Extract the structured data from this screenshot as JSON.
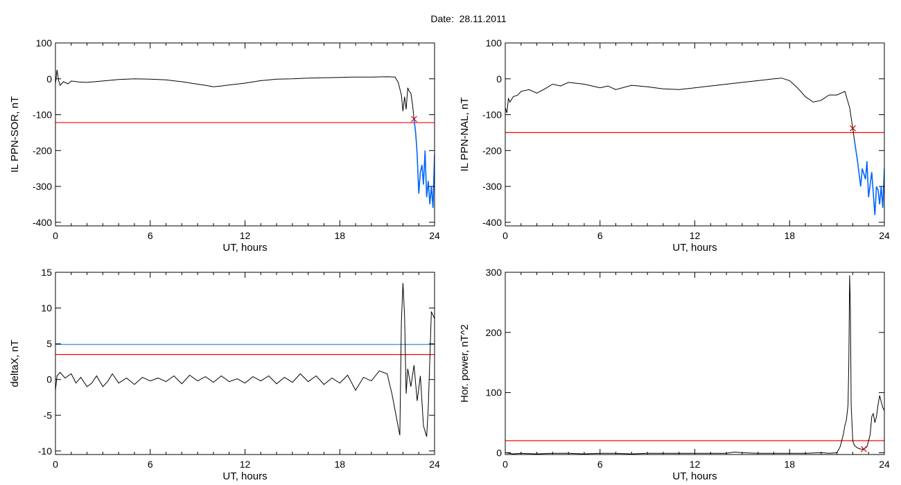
{
  "header": {
    "date_label": "Date:  28.11.2011"
  },
  "colors": {
    "trace": "#000000",
    "threshold_red": "#ff0000",
    "threshold_blue": "#1f7ad6",
    "highlight_blue": "#0066ff",
    "marker": "#cc0000"
  },
  "chart_data": [
    {
      "id": "il-sor",
      "type": "line",
      "ylabel": "IL PPN-SOR, nT",
      "xlabel": "UT, hours",
      "xlim": [
        0,
        24
      ],
      "ylim": [
        -410,
        100
      ],
      "xticks": [
        0,
        6,
        12,
        18,
        24
      ],
      "yticks": [
        -400,
        -300,
        -200,
        -100,
        0,
        100
      ],
      "threshold_red": -122,
      "threshold_blue": null,
      "highlight_from": 22.7,
      "marker": {
        "x": 22.7,
        "y": -112
      },
      "series": [
        {
          "x": [
            0,
            0.1,
            0.2,
            0.3,
            0.5,
            0.8,
            1.0,
            1.5,
            2.0,
            3.0,
            4.0,
            5.0,
            6.0,
            7.0,
            8.0,
            9.0,
            9.5,
            10.0,
            10.5,
            11.0,
            12.0,
            13.0,
            14.0,
            15.0,
            16.0,
            17.0,
            18.0,
            19.0,
            20.0,
            21.0,
            21.5,
            21.7,
            21.9,
            22.0,
            22.1,
            22.2,
            22.3,
            22.4,
            22.5,
            22.6,
            22.7,
            22.8,
            22.9,
            23.0,
            23.1,
            23.2,
            23.3,
            23.4,
            23.5,
            23.6,
            23.7,
            23.8,
            23.9,
            24.0
          ],
          "y": [
            -15,
            25,
            -5,
            -18,
            -8,
            -14,
            -6,
            -9,
            -10,
            -6,
            -2,
            0,
            -1,
            -3,
            -8,
            -15,
            -18,
            -22,
            -20,
            -17,
            -12,
            -5,
            -1,
            0,
            2,
            3,
            4,
            5,
            5,
            6,
            5,
            -10,
            -45,
            -90,
            -50,
            -85,
            -25,
            -35,
            -40,
            -70,
            -112,
            -150,
            -210,
            -320,
            -260,
            -240,
            -295,
            -200,
            -330,
            -285,
            -350,
            -300,
            -360,
            -210
          ]
        }
      ]
    },
    {
      "id": "il-nal",
      "type": "line",
      "ylabel": "IL PPN-NAL, nT",
      "xlabel": "UT, hours",
      "xlim": [
        0,
        24
      ],
      "ylim": [
        -410,
        100
      ],
      "xticks": [
        0,
        6,
        12,
        18,
        24
      ],
      "yticks": [
        -400,
        -300,
        -200,
        -100,
        0,
        100
      ],
      "threshold_red": -150,
      "threshold_blue": null,
      "highlight_from": 22.1,
      "marker": {
        "x": 22.0,
        "y": -138
      },
      "series": [
        {
          "x": [
            0,
            0.1,
            0.2,
            0.3,
            0.5,
            0.8,
            1.0,
            1.5,
            2.0,
            2.5,
            3.0,
            3.5,
            4.0,
            5.0,
            6.0,
            6.5,
            7.0,
            8.0,
            9.0,
            10.0,
            11.0,
            12.0,
            13.0,
            14.0,
            15.0,
            16.0,
            17.0,
            17.5,
            18.0,
            18.5,
            19.0,
            19.5,
            20.0,
            20.5,
            21.0,
            21.5,
            21.8,
            22.0,
            22.1,
            22.3,
            22.5,
            22.6,
            22.8,
            22.9,
            23.0,
            23.2,
            23.4,
            23.5,
            23.6,
            23.7,
            23.8,
            23.9,
            24.0
          ],
          "y": [
            -80,
            -95,
            -55,
            -65,
            -50,
            -45,
            -35,
            -30,
            -40,
            -28,
            -15,
            -20,
            -10,
            -15,
            -25,
            -20,
            -30,
            -18,
            -22,
            -28,
            -30,
            -25,
            -20,
            -15,
            -10,
            -5,
            0,
            2,
            -5,
            -25,
            -50,
            -65,
            -60,
            -45,
            -45,
            -35,
            -80,
            -138,
            -170,
            -230,
            -300,
            -250,
            -280,
            -230,
            -330,
            -260,
            -380,
            -300,
            -310,
            -350,
            -300,
            -360,
            -250
          ]
        }
      ]
    },
    {
      "id": "delta-x",
      "type": "line",
      "ylabel": "deltaX, nT",
      "xlabel": "UT, hours",
      "xlim": [
        0,
        24
      ],
      "ylim": [
        -10.5,
        15
      ],
      "xticks": [
        0,
        6,
        12,
        18,
        24
      ],
      "yticks": [
        -10,
        -5,
        0,
        5,
        10,
        15
      ],
      "threshold_red": 3.5,
      "threshold_blue": 4.9,
      "highlight_from": null,
      "marker": null,
      "series": [
        {
          "x": [
            0,
            0.1,
            0.3,
            0.6,
            1.0,
            1.3,
            1.6,
            2.0,
            2.3,
            2.6,
            3.0,
            3.3,
            3.6,
            4.0,
            4.5,
            5.0,
            5.5,
            6.0,
            6.5,
            7.0,
            7.5,
            8.0,
            8.5,
            9.0,
            9.5,
            10.0,
            10.5,
            11.0,
            11.5,
            12.0,
            12.5,
            13.0,
            13.5,
            14.0,
            14.5,
            15.0,
            15.5,
            16.0,
            16.5,
            17.0,
            17.5,
            18.0,
            18.5,
            19.0,
            19.5,
            20.0,
            20.5,
            21.0,
            21.3,
            21.6,
            21.8,
            21.9,
            22.0,
            22.1,
            22.2,
            22.3,
            22.5,
            22.7,
            22.9,
            23.1,
            23.3,
            23.5,
            23.6,
            23.8,
            24.0
          ],
          "y": [
            -1.5,
            0.5,
            1.0,
            0.2,
            0.8,
            -0.5,
            0.3,
            -1.0,
            -0.5,
            0.5,
            -1.0,
            -0.3,
            0.8,
            -0.5,
            0.2,
            -0.7,
            0.3,
            -0.2,
            0.2,
            -0.3,
            0.5,
            -0.6,
            0.6,
            -0.2,
            0.4,
            -0.4,
            0.5,
            -0.3,
            0.1,
            -0.5,
            0.4,
            -0.2,
            0.5,
            -0.6,
            0.3,
            -0.4,
            0.8,
            -0.3,
            0.5,
            -0.7,
            0.2,
            -0.5,
            0.6,
            -1.5,
            0.3,
            -0.2,
            1.2,
            0.8,
            -2.0,
            -5.5,
            -7.8,
            8.0,
            13.5,
            9.0,
            -2.0,
            1.5,
            -1.0,
            2.0,
            -3.0,
            0.5,
            -6.5,
            -8.0,
            -4.0,
            9.5,
            8.5
          ]
        }
      ]
    },
    {
      "id": "hor-power",
      "type": "line",
      "ylabel": "Hor. power, nT^2",
      "xlabel": "UT, hours",
      "xlim": [
        0,
        24
      ],
      "ylim": [
        -3,
        300
      ],
      "xticks": [
        0,
        6,
        12,
        18,
        24
      ],
      "yticks": [
        0,
        100,
        200,
        300
      ],
      "threshold_red": 20,
      "threshold_blue": null,
      "highlight_from": null,
      "marker": {
        "x": 22.7,
        "y": 6
      },
      "series": [
        {
          "x": [
            0,
            0.5,
            1.0,
            2.0,
            3.0,
            4.0,
            5.0,
            6.0,
            7.0,
            8.0,
            9.0,
            10.0,
            11.0,
            12.0,
            13.0,
            14.0,
            14.5,
            15.0,
            16.0,
            17.0,
            18.0,
            19.0,
            20.0,
            20.5,
            21.0,
            21.2,
            21.4,
            21.5,
            21.6,
            21.7,
            21.75,
            21.8,
            21.85,
            21.9,
            22.0,
            22.1,
            22.3,
            22.5,
            22.7,
            22.9,
            23.1,
            23.2,
            23.3,
            23.4,
            23.5,
            23.6,
            23.7,
            23.8,
            23.9,
            24.0
          ],
          "y": [
            0,
            -2,
            -1,
            -2,
            -1,
            -1,
            -2,
            -1,
            -1,
            -2,
            -1,
            -1,
            -1,
            -1,
            -1,
            -1,
            1,
            0,
            -1,
            -1,
            -1,
            -1,
            0,
            -1,
            0,
            10,
            30,
            45,
            55,
            80,
            150,
            295,
            240,
            80,
            20,
            12,
            8,
            6,
            6,
            10,
            30,
            60,
            65,
            50,
            60,
            80,
            95,
            85,
            75,
            70
          ]
        }
      ]
    }
  ]
}
